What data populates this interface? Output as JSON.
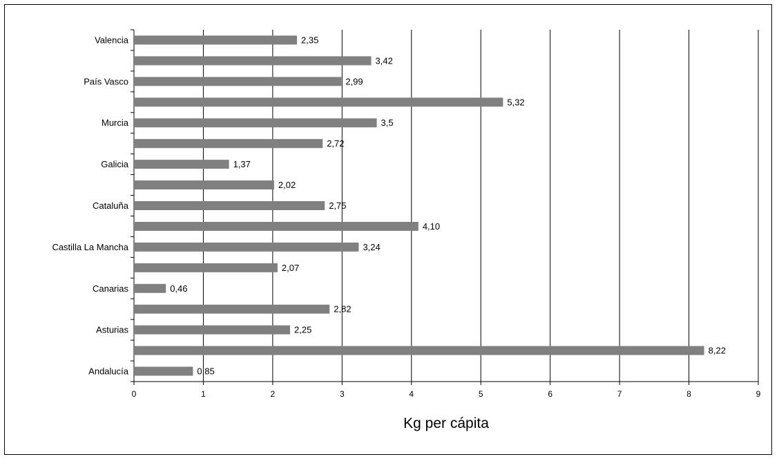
{
  "chart_data": {
    "type": "bar",
    "orientation": "horizontal",
    "categories": [
      "Andalucía",
      "",
      "Asturias",
      "",
      "Canarias",
      "",
      "Castilla La Mancha",
      "",
      "Cataluña",
      "",
      "Galicia",
      "",
      "Murcia",
      "",
      "País Vasco",
      "",
      "Valencia"
    ],
    "values": [
      0.85,
      8.22,
      2.25,
      2.82,
      0.46,
      2.07,
      3.24,
      4.1,
      2.75,
      2.02,
      1.37,
      2.72,
      3.5,
      5.32,
      2.99,
      3.42,
      2.35
    ],
    "data_labels": [
      "0,85",
      "8,22",
      "2,25",
      "2,82",
      "0,46",
      "2,07",
      "3,24",
      "4,10",
      "2,75",
      "2,02",
      "1,37",
      "2,72",
      "3,5",
      "5,32",
      "2,99",
      "3,42",
      "2,35"
    ],
    "xlabel": "Kg per cápita",
    "ylabel": "",
    "title": "",
    "xlim": [
      0,
      9
    ],
    "x_ticks": [
      "0",
      "1",
      "2",
      "3",
      "4",
      "5",
      "6",
      "7",
      "8",
      "9"
    ],
    "grid": "vertical",
    "legend": "none",
    "bar_color": "#808080",
    "grid_color": "#000000"
  }
}
